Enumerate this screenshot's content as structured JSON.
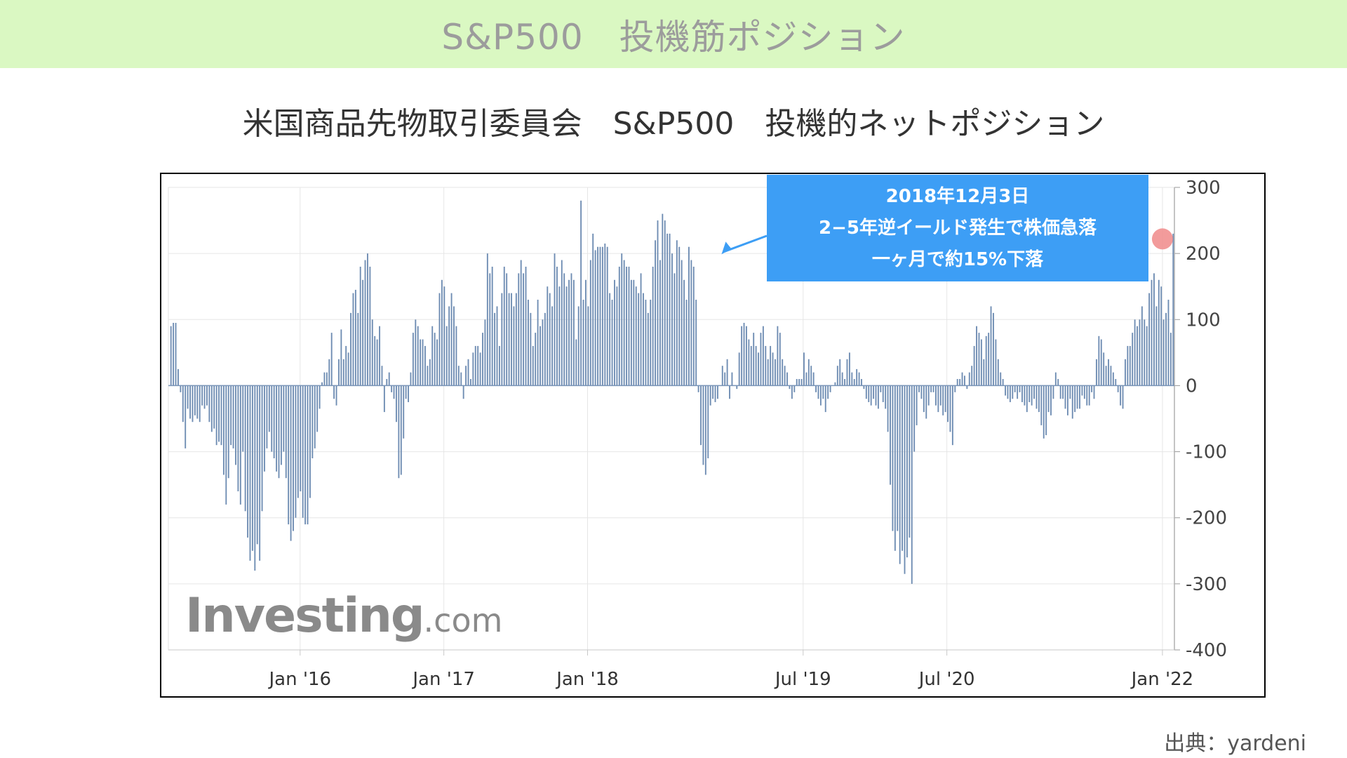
{
  "banner": {
    "title": "S&P500　投機筋ポジション"
  },
  "chart_data": {
    "type": "bar",
    "title": "米国商品先物取引委員会　S&P500　投機的ネットポジション",
    "ylim": [
      -400,
      300
    ],
    "yticks": [
      "300",
      "200",
      "100",
      "0",
      "-100",
      "-200",
      "-300",
      "-400"
    ],
    "ytick_values": [
      300,
      200,
      100,
      0,
      -100,
      -200,
      -300,
      -400
    ],
    "xticks": [
      "Jan '16",
      "Jan '17",
      "Jan '18",
      "Jul '19",
      "Jul '20",
      "Jan '22"
    ],
    "x_start": "2015-02",
    "x_end": "2022-02",
    "bar_color": "#6f8db3",
    "highlight_color": "#f08a8a",
    "grid": true,
    "y_axis_position": "right",
    "series": [
      {
        "values": [
          90,
          95,
          95,
          25,
          -10,
          -55,
          -95,
          -35,
          -50,
          -55,
          -45,
          -50,
          -55,
          -30,
          -35,
          -30,
          -55,
          -70,
          -65,
          -90,
          -85,
          -90,
          -135,
          -180,
          -140,
          -90,
          -95,
          -120,
          -160,
          -180,
          -100,
          -190,
          -230,
          -265,
          -250,
          -280,
          -240,
          -265,
          -190,
          -130,
          -95,
          -70,
          -100,
          -110,
          -130,
          -140,
          -120,
          -100,
          -140,
          -210,
          -235,
          -220,
          -200,
          -170,
          -160,
          -200,
          -210,
          -210,
          -170,
          -110,
          -95,
          -70,
          -35,
          5,
          20,
          20,
          40,
          80,
          -20,
          -30,
          40,
          85,
          40,
          60,
          50,
          110,
          140,
          145,
          110,
          180,
          160,
          190,
          200,
          180,
          100,
          75,
          70,
          90,
          30,
          -40,
          10,
          20,
          -10,
          -20,
          -55,
          -140,
          -135,
          -80,
          -20,
          -25,
          20,
          80,
          100,
          90,
          70,
          70,
          60,
          30,
          40,
          90,
          80,
          70,
          140,
          160,
          150,
          90,
          120,
          140,
          120,
          90,
          30,
          20,
          -20,
          30,
          40,
          10,
          50,
          60,
          60,
          50,
          80,
          100,
          200,
          170,
          180,
          110,
          120,
          60,
          140,
          180,
          170,
          140,
          140,
          120,
          140,
          170,
          190,
          170,
          180,
          130,
          110,
          60,
          80,
          130,
          90,
          100,
          110,
          150,
          140,
          120,
          200,
          180,
          150,
          190,
          170,
          150,
          160,
          170,
          160,
          70,
          120,
          280,
          130,
          160,
          120,
          190,
          230,
          205,
          210,
          210,
          210,
          215,
          210,
          140,
          130,
          160,
          150,
          180,
          200,
          190,
          180,
          180,
          160,
          160,
          150,
          140,
          170,
          140,
          130,
          110,
          130,
          180,
          220,
          250,
          190,
          260,
          250,
          230,
          230,
          200,
          170,
          220,
          210,
          190,
          160,
          130,
          210,
          190,
          180,
          130,
          -10,
          -90,
          -120,
          -135,
          -110,
          -30,
          -20,
          -25,
          -20,
          0,
          30,
          20,
          40,
          -20,
          20,
          0,
          -5,
          50,
          90,
          95,
          90,
          70,
          60,
          80,
          60,
          50,
          80,
          90,
          60,
          40,
          60,
          50,
          40,
          90,
          80,
          40,
          30,
          20,
          -5,
          -20,
          -10,
          10,
          10,
          10,
          50,
          20,
          40,
          30,
          20,
          -10,
          -20,
          -30,
          -20,
          -40,
          -20,
          -10,
          0,
          5,
          30,
          40,
          20,
          10,
          40,
          50,
          20,
          10,
          25,
          20,
          10,
          -5,
          -20,
          -25,
          -30,
          -20,
          -30,
          -35,
          -10,
          -25,
          -35,
          -70,
          -150,
          -220,
          -250,
          -220,
          -270,
          -250,
          -285,
          -260,
          -230,
          -300,
          -100,
          -60,
          -10,
          -20,
          -40,
          -50,
          -30,
          -10,
          -10,
          -30,
          -40,
          -30,
          -45,
          -40,
          -55,
          -70,
          -90,
          -10,
          10,
          10,
          20,
          15,
          -5,
          20,
          30,
          60,
          90,
          80,
          70,
          40,
          75,
          80,
          120,
          110,
          70,
          40,
          20,
          10,
          -15,
          -20,
          -25,
          -20,
          -10,
          -20,
          -10,
          -25,
          -30,
          -40,
          -25,
          -30,
          -20,
          -35,
          -40,
          -60,
          -80,
          -75,
          -40,
          -45,
          -20,
          20,
          10,
          -20,
          -20,
          -35,
          -45,
          -20,
          -50,
          -40,
          -35,
          -35,
          -15,
          -20,
          -30,
          -30,
          -10,
          -20,
          40,
          75,
          70,
          50,
          30,
          40,
          30,
          20,
          10,
          -10,
          -30,
          -35,
          40,
          60,
          60,
          80,
          100,
          90,
          100,
          120,
          100,
          90,
          140,
          160,
          170,
          120,
          160,
          150,
          100,
          110,
          130,
          80,
          230
        ]
      }
    ],
    "highlight_point": {
      "date": "2022-01",
      "value": 222
    },
    "annotation": {
      "lines": [
        "2018年12月3日",
        "2−5年逆イールド発生で株価急落",
        "一ヶ月で約15%下落"
      ],
      "points_to": {
        "date": "2018-12-03",
        "value": 205
      }
    }
  },
  "watermark": {
    "brand": "Investing",
    "suffix": ".com"
  },
  "source": "出典：yardeni"
}
